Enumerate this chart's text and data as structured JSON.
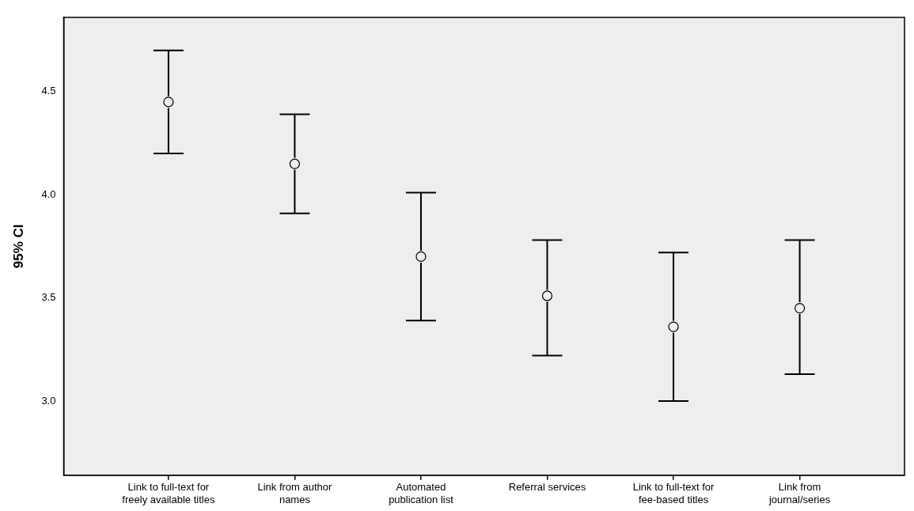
{
  "chart_data": {
    "type": "scatter",
    "ylabel": "95% CI",
    "categories": [
      "Link to full-text for freely available titles",
      "Link from author names",
      "Automated publication list",
      "Referral services",
      "Link to full-text for fee-based titles",
      "Link from journal/series"
    ],
    "series": [
      {
        "color": "#000000",
        "values": [
          4.45,
          4.15,
          3.7,
          3.51,
          3.36,
          3.45
        ],
        "errors": [
          [
            4.2,
            4.7
          ],
          [
            3.91,
            4.39
          ],
          [
            3.39,
            4.01
          ],
          [
            3.22,
            3.78
          ],
          [
            3.0,
            3.72
          ],
          [
            3.13,
            3.78
          ]
        ]
      }
    ],
    "ylim": [
      2.64,
      4.86
    ],
    "yticks": [
      {
        "value": 3,
        "label": "3.0"
      },
      {
        "value": 3.5,
        "label": "3.5"
      },
      {
        "value": 4,
        "label": "4.0"
      },
      {
        "value": 4.5,
        "label": "4.5"
      }
    ],
    "marker": "circle"
  }
}
